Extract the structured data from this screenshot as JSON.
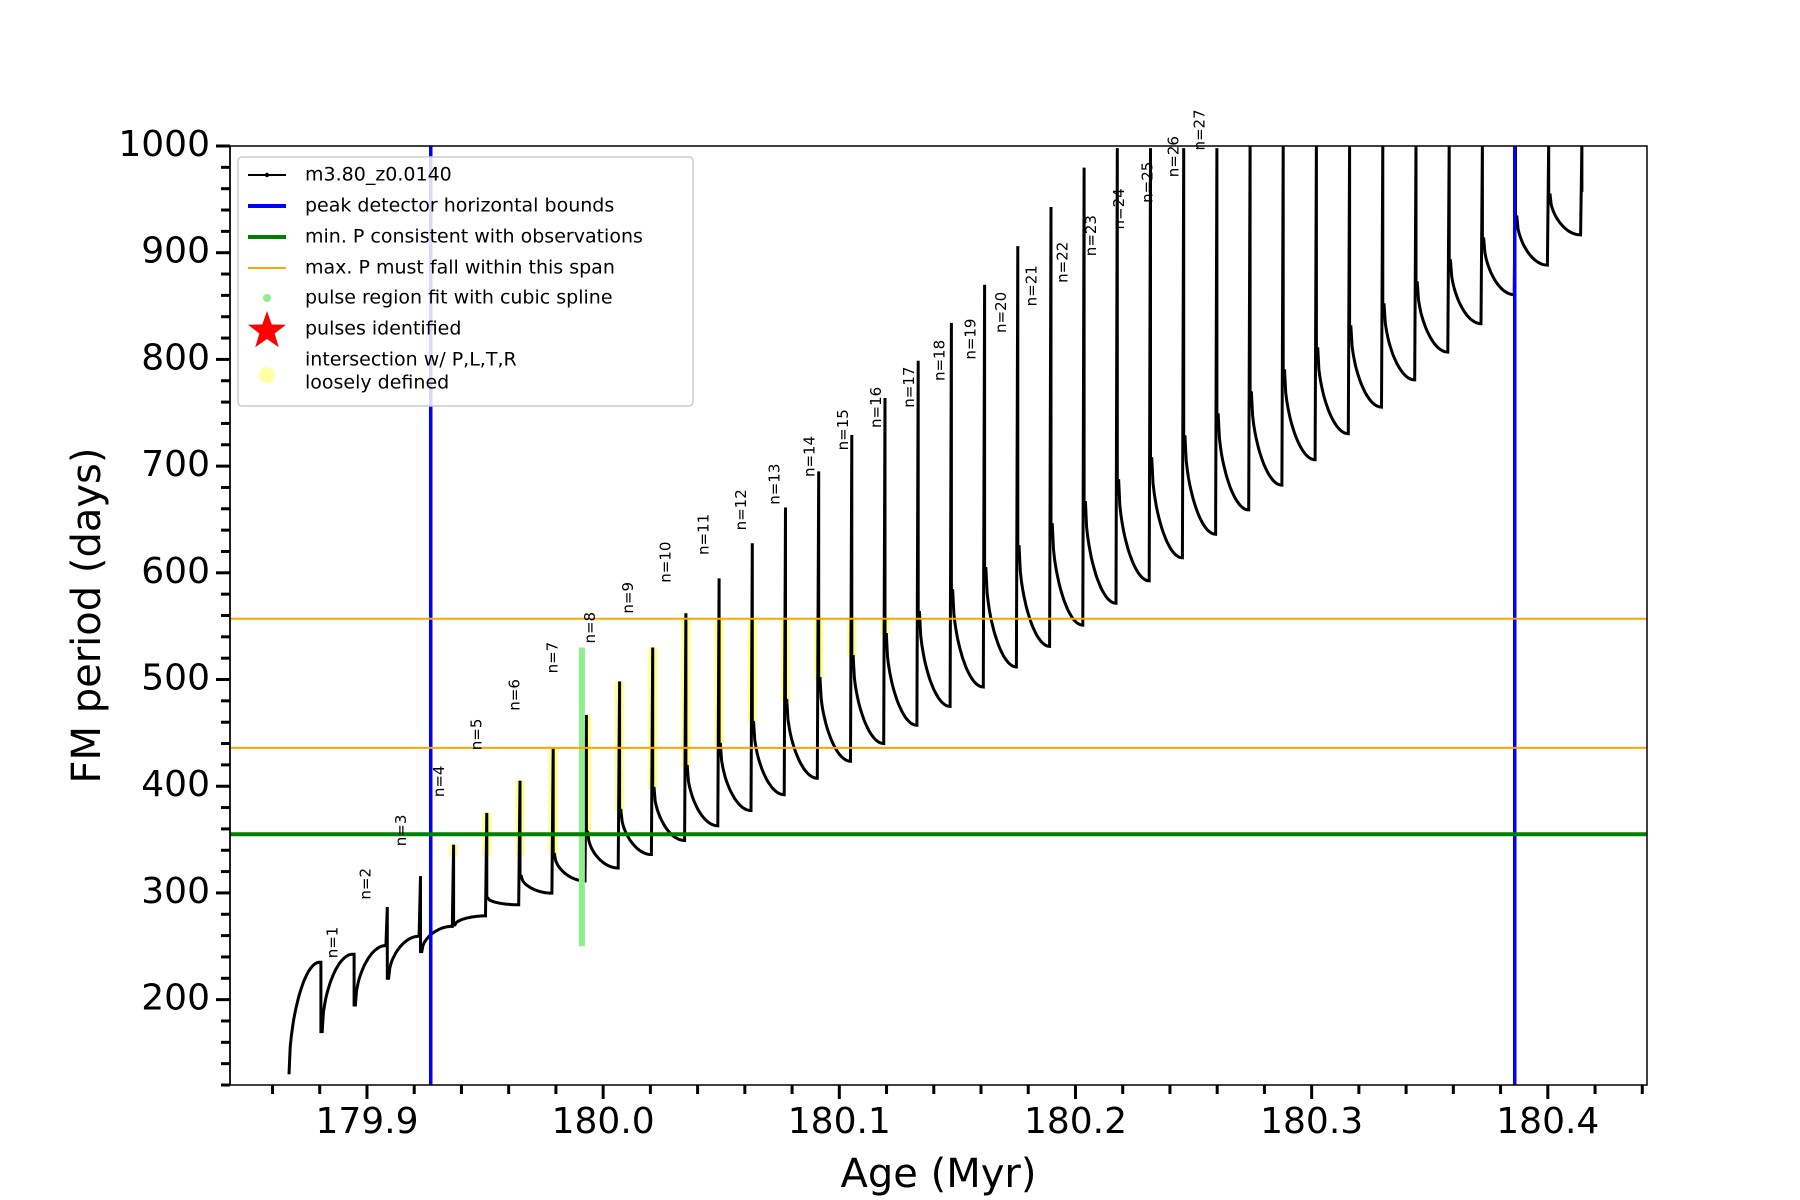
{
  "chart_data": {
    "type": "line",
    "title": "",
    "xlabel": "Age (Myr)",
    "ylabel": "FM period (days)",
    "xlim": [
      179.842,
      180.442
    ],
    "ylim": [
      120,
      1000
    ],
    "x_ticks": [
      "179.9",
      "180.0",
      "180.1",
      "180.2",
      "180.3",
      "180.4"
    ],
    "y_ticks": [
      "200",
      "300",
      "400",
      "500",
      "600",
      "700",
      "800",
      "900",
      "1000"
    ],
    "grid": false,
    "legend_position": "upper-left",
    "legend": [
      {
        "label": "m3.80_z0.0140",
        "style": "black-line-marker"
      },
      {
        "label": "peak detector horizontal bounds",
        "style": "blue-line"
      },
      {
        "label": "min. P consistent with observations",
        "style": "green-line"
      },
      {
        "label": "max. P must fall within this span",
        "style": "orange-line"
      },
      {
        "label": "pulse region fit with cubic spline",
        "style": "lightgreen-dot"
      },
      {
        "label": "pulses identified",
        "style": "red-star"
      },
      {
        "label": "intersection w/ P,L,T,R",
        "label2": "loosely defined",
        "style": "yellow-circle"
      }
    ],
    "colors": {
      "track": "#000000",
      "bounds": "#0000ff",
      "min_p": "#008000",
      "max_p_span": "#ffa500",
      "spline": "#90ee90",
      "pulses": "#ff0000",
      "intersection": "#ffff00"
    },
    "vertical_bounds": [
      179.927,
      180.386
    ],
    "min_period": 355,
    "max_period_span": [
      436,
      557
    ],
    "track_start": {
      "x": 179.867,
      "y": 130
    },
    "track_end": {
      "x": 180.415,
      "y": 957
    },
    "pulses": [
      {
        "n": "n=1",
        "x": 179.882,
        "p": 235
      },
      {
        "n": "n=2",
        "x": 179.896,
        "p": 290
      },
      {
        "n": "n=3",
        "x": 179.911,
        "p": 340
      },
      {
        "n": "n=4",
        "x": 179.927,
        "p": 386
      },
      {
        "n": "n=5",
        "x": 179.943,
        "p": 430
      },
      {
        "n": "n=6",
        "x": 179.959,
        "p": 467
      },
      {
        "n": "n=7",
        "x": 179.975,
        "p": 502
      },
      {
        "n": "n=8",
        "x": 179.991,
        "p": 530
      },
      {
        "n": "n=9",
        "x": 180.007,
        "p": 558
      },
      {
        "n": "n=10",
        "x": 180.023,
        "p": 587
      },
      {
        "n": "n=11",
        "x": 180.039,
        "p": 613
      },
      {
        "n": "n=12",
        "x": 180.055,
        "p": 636
      },
      {
        "n": "n=13",
        "x": 180.069,
        "p": 660
      },
      {
        "n": "n=14",
        "x": 180.084,
        "p": 686
      },
      {
        "n": "n=15",
        "x": 180.098,
        "p": 711
      },
      {
        "n": "n=16",
        "x": 180.112,
        "p": 732
      },
      {
        "n": "n=17",
        "x": 180.126,
        "p": 751
      },
      {
        "n": "n=18",
        "x": 180.139,
        "p": 776
      },
      {
        "n": "n=19",
        "x": 180.152,
        "p": 796
      },
      {
        "n": "n=20",
        "x": 180.165,
        "p": 821
      },
      {
        "n": "n=21",
        "x": 180.178,
        "p": 846
      },
      {
        "n": "n=22",
        "x": 180.191,
        "p": 868
      },
      {
        "n": "n=23",
        "x": 180.203,
        "p": 893
      },
      {
        "n": "n=24",
        "x": 180.215,
        "p": 918
      },
      {
        "n": "n=25",
        "x": 180.227,
        "p": 943
      },
      {
        "n": "n=26",
        "x": 180.238,
        "p": 967
      },
      {
        "n": "n=27",
        "x": 180.249,
        "p": 992
      }
    ],
    "cycle_count": 39
  }
}
